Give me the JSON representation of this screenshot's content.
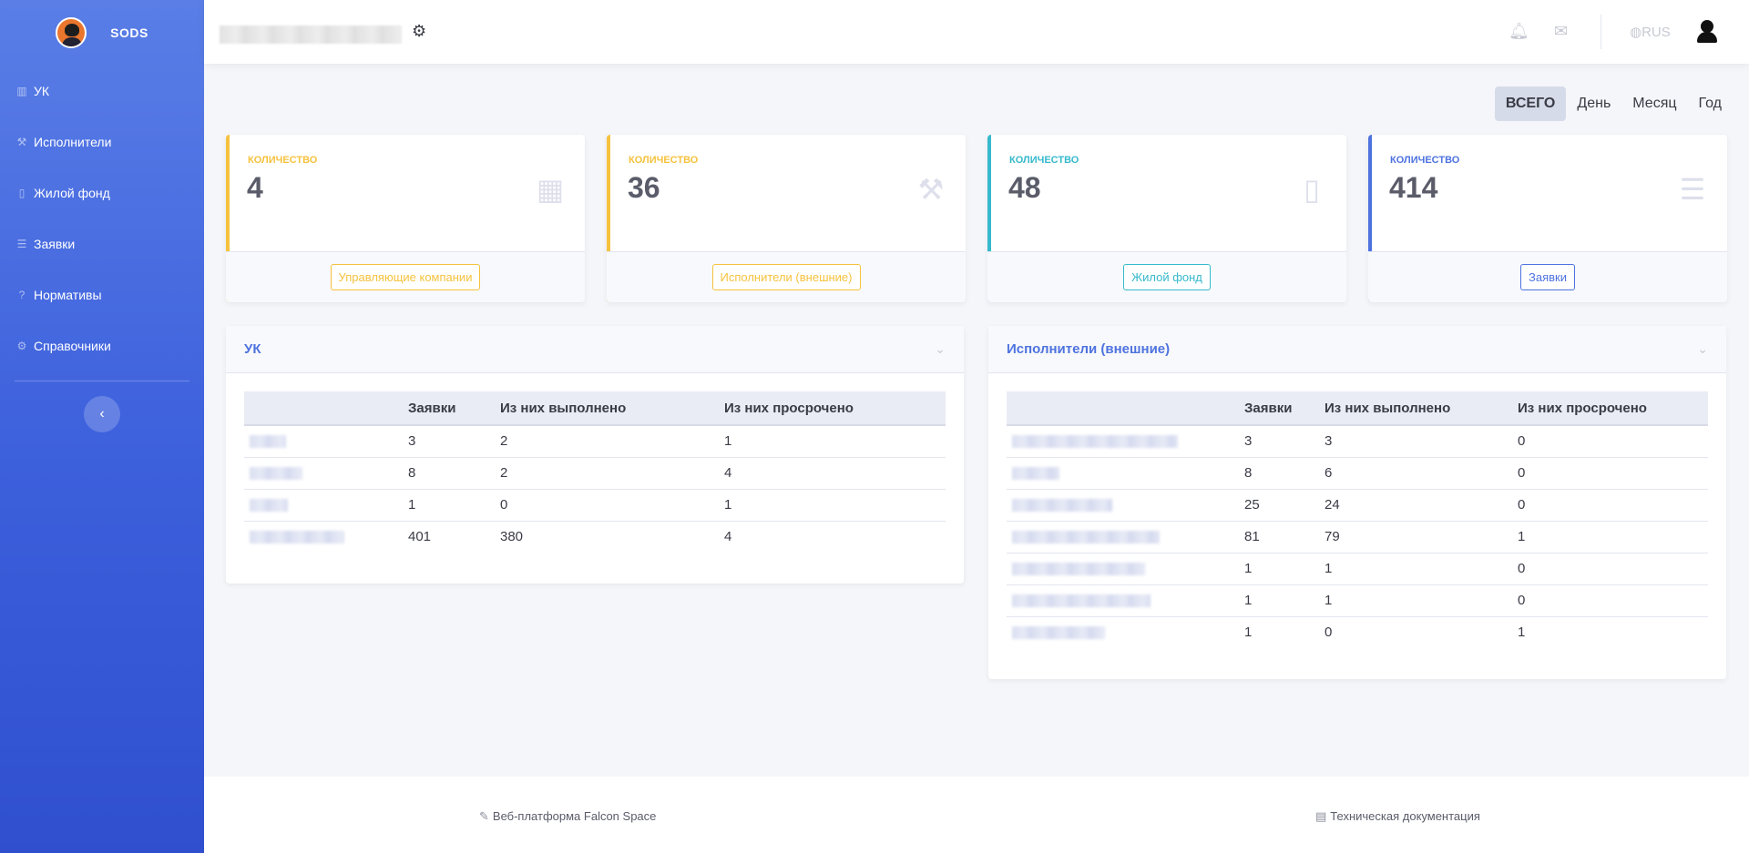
{
  "brand": {
    "name": "SODS"
  },
  "sidebar": {
    "items": [
      {
        "label": "УК",
        "icon": "building-icon"
      },
      {
        "label": "Исполнители",
        "icon": "wrench-icon"
      },
      {
        "label": "Жилой фонд",
        "icon": "building-icon"
      },
      {
        "label": "Заявки",
        "icon": "list-icon"
      },
      {
        "label": "Нормативы",
        "icon": "question-icon"
      },
      {
        "label": "Справочники",
        "icon": "cogs-icon"
      }
    ]
  },
  "topbar": {
    "language": "RUS"
  },
  "period": {
    "tabs": [
      "ВСЕГО",
      "День",
      "Месяц",
      "Год"
    ],
    "active": "ВСЕГО"
  },
  "cards": [
    {
      "label": "КОЛИЧЕСТВО",
      "value": "4",
      "button": "Управляющие компании",
      "color": "#f6c23e",
      "icon": "building-icon"
    },
    {
      "label": "КОЛИЧЕСТВО",
      "value": "36",
      "button": "Исполнители (внешние)",
      "color": "#f6c23e",
      "icon": "wrench-icon"
    },
    {
      "label": "КОЛИЧЕСТВО",
      "value": "48",
      "button": "Жилой фонд",
      "color": "#36b9cc",
      "icon": "building-icon"
    },
    {
      "label": "КОЛИЧЕСТВО",
      "value": "414",
      "button": "Заявки",
      "color": "#4e73df",
      "icon": "list-icon"
    }
  ],
  "uk_table": {
    "title": "УК",
    "headers": [
      "",
      "Заявки",
      "Из них выполнено",
      "Из них просрочено"
    ],
    "rows": [
      [
        "",
        "3",
        "2",
        "1"
      ],
      [
        "",
        "8",
        "2",
        "4"
      ],
      [
        "",
        "1",
        "0",
        "1"
      ],
      [
        "",
        "401",
        "380",
        "4"
      ]
    ]
  },
  "exec_table": {
    "title": "Исполнители (внешние)",
    "headers": [
      "",
      "Заявки",
      "Из них выполнено",
      "Из них просрочено"
    ],
    "rows": [
      [
        "",
        "3",
        "3",
        "0"
      ],
      [
        "",
        "8",
        "6",
        "0"
      ],
      [
        "",
        "25",
        "24",
        "0"
      ],
      [
        "",
        "81",
        "79",
        "1"
      ],
      [
        "",
        "1",
        "1",
        "0"
      ],
      [
        "",
        "1",
        "1",
        "0"
      ],
      [
        "",
        "1",
        "0",
        "1"
      ]
    ]
  },
  "footer": {
    "left": "Веб-платформа Falcon Space",
    "right": "Техническая документация"
  }
}
